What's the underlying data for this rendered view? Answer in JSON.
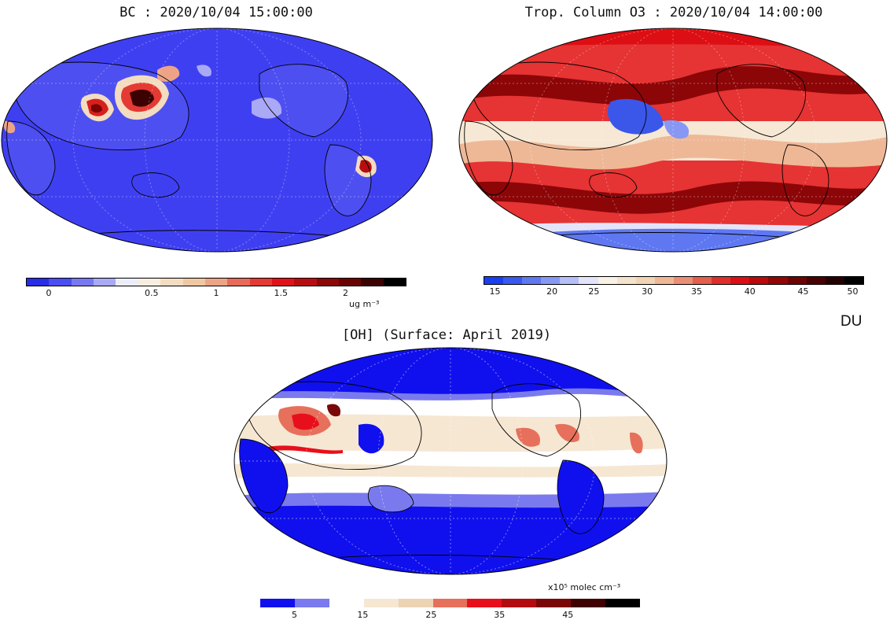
{
  "panels": {
    "bc": {
      "title": "BC : 2020/10/04 15:00:00",
      "colorbar": {
        "colors": [
          "#2a2ce6",
          "#4a4df0",
          "#7878f2",
          "#a9a9f6",
          "#ececfb",
          "#f7eedf",
          "#f3dcc0",
          "#efc7a1",
          "#eda486",
          "#e86a5a",
          "#e43a33",
          "#e0111a",
          "#b80d10",
          "#8c0706",
          "#6a0302",
          "#3c0101",
          "#000000"
        ],
        "tick_labels": [
          "0",
          "0.5",
          "1",
          "1.5",
          "2"
        ],
        "unit": "ug m⁻³"
      },
      "colors": {
        "ocean": "#3f3ff2",
        "land_clean": "#5050f0",
        "plume_dark": "#7a0500",
        "plume_mid": "#d81f1f",
        "plume_light": "#f3dcc0"
      }
    },
    "o3": {
      "title": "Trop. Column O3 : 2020/10/04 14:00:00",
      "colorbar": {
        "colors": [
          "#1a3ff0",
          "#3a59f0",
          "#5f78f2",
          "#8798f4",
          "#b5bff7",
          "#e3e4fa",
          "#f8f1e6",
          "#f4e3cc",
          "#f2d4b4",
          "#eeb897",
          "#ea8f76",
          "#e45f4e",
          "#e02f2b",
          "#dd0f14",
          "#bb0a0d",
          "#940606",
          "#6e0303",
          "#490101",
          "#250000",
          "#000000"
        ],
        "tick_labels": [
          "15",
          "20",
          "25",
          "30",
          "35",
          "40",
          "45",
          "50"
        ],
        "unit": "DU"
      },
      "colors": {
        "base": "#e63333",
        "band_dark": "#8c0608",
        "tropics": "#f6e8d4",
        "low": "#3b57ea"
      }
    },
    "oh": {
      "title": "[OH] (Surface: April 2019)",
      "colorbar": {
        "colors": [
          "#1010ee",
          "#7a7aee",
          "#ffffff",
          "#f6e7d2",
          "#ecd3b4",
          "#e6705c",
          "#e80f1c",
          "#b20c10",
          "#7a0708",
          "#3e0202",
          "#000000"
        ],
        "tick_labels": [
          "5",
          "15",
          "25",
          "35",
          "45"
        ],
        "unit": "x10⁵ molec cm⁻³"
      },
      "colors": {
        "polar": "#1010ee",
        "mid": "#7a7aee",
        "tropics": "#f6e7d2",
        "subtrop": "#ffffff",
        "hot": "#e03030"
      }
    }
  }
}
